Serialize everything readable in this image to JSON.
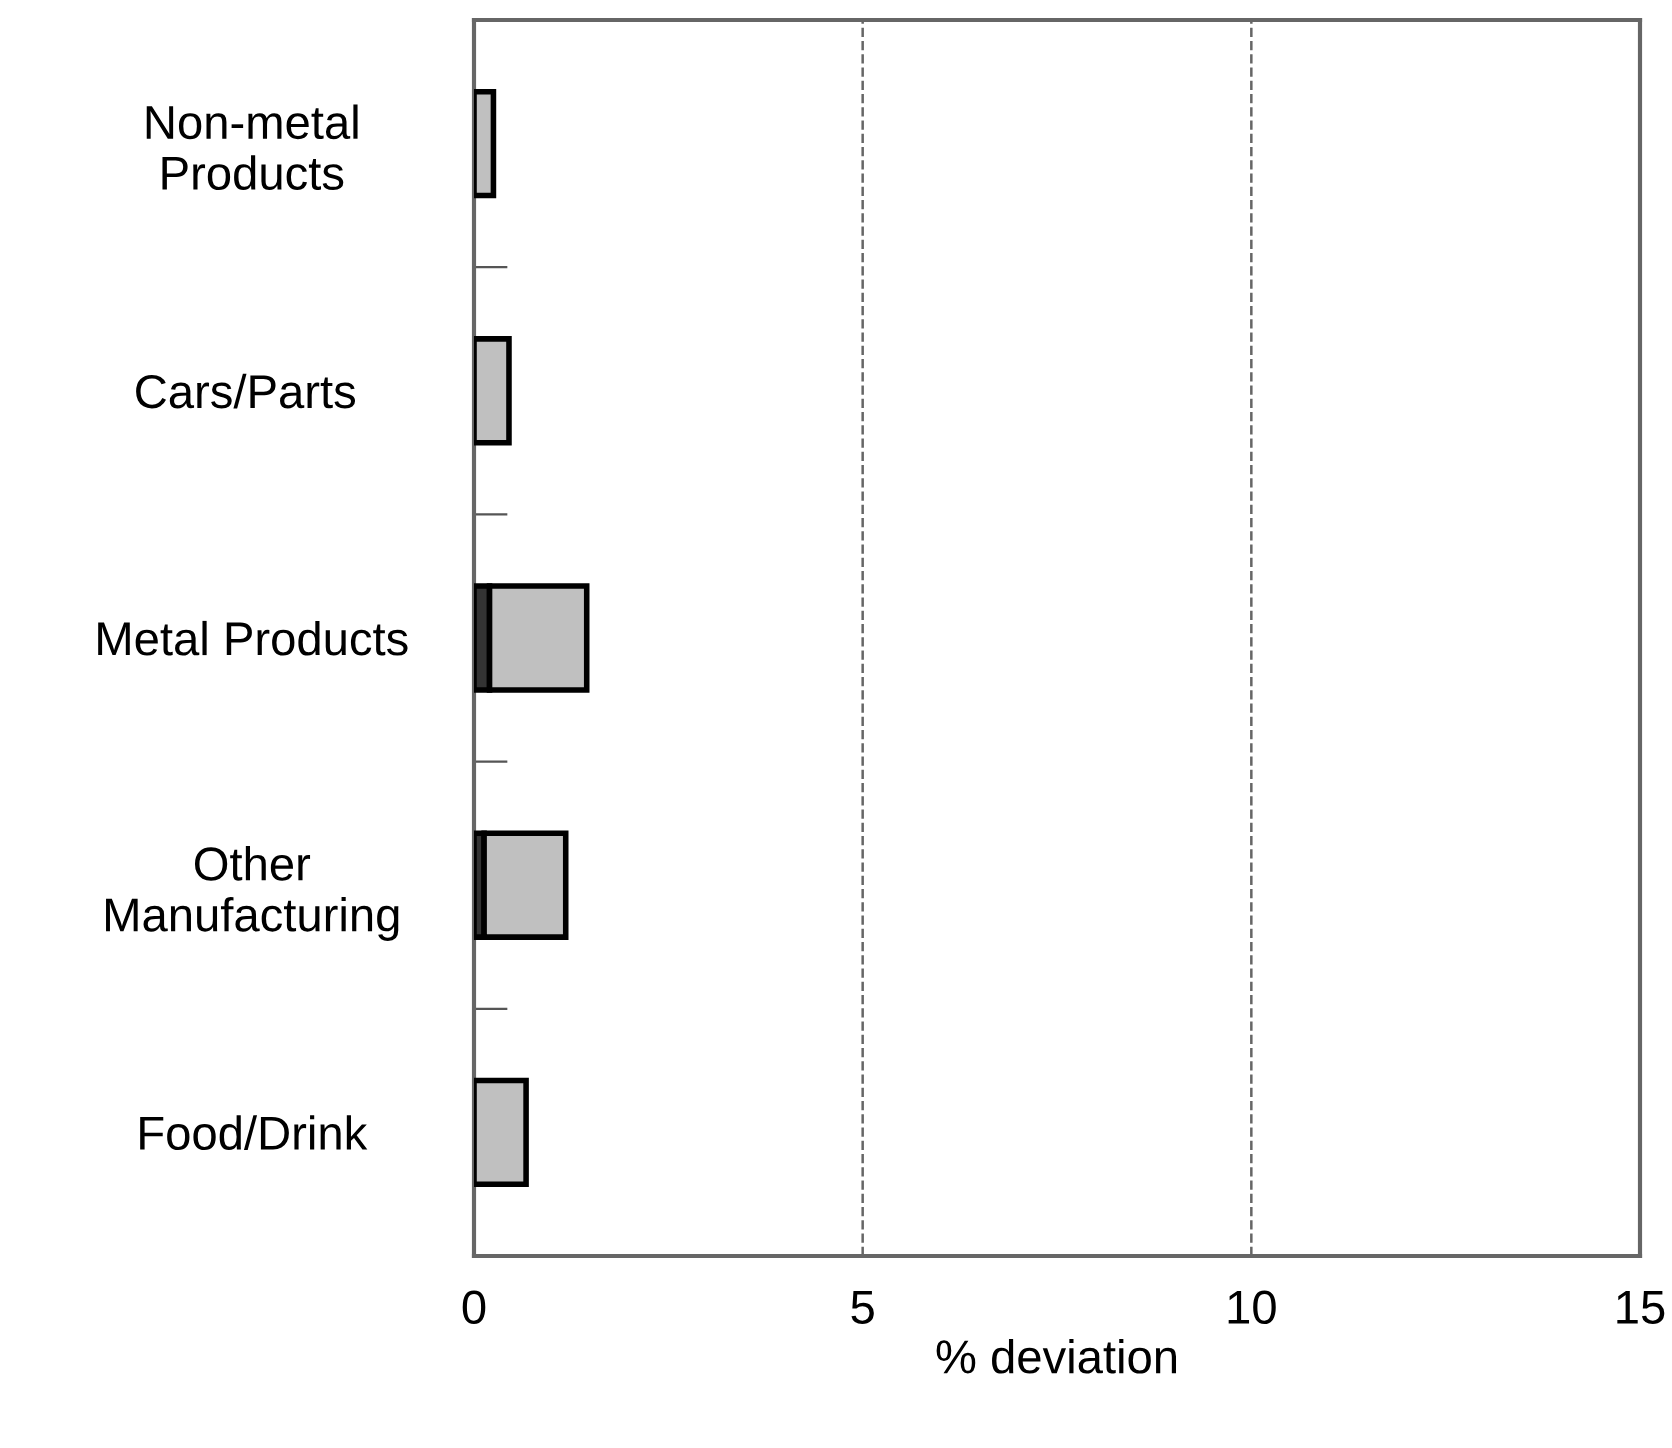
{
  "chart_data": {
    "type": "bar",
    "orientation": "horizontal",
    "stacked": true,
    "categories": [
      "Non-metal\nProducts",
      "Cars/Parts ",
      "Metal Products",
      "Other\nManufacturing",
      "Food/Drink"
    ],
    "series": [
      {
        "color": "#333333",
        "values": [
          0,
          0,
          0.2,
          0.13,
          0
        ]
      },
      {
        "color": "#c0c0c0",
        "values": [
          0.25,
          0.45,
          1.25,
          1.05,
          0.67
        ]
      }
    ],
    "xlabel": "% deviation",
    "xlim": [
      0,
      15
    ],
    "xticks": [
      0,
      5,
      10,
      15
    ],
    "grid": "x",
    "legend": false
  }
}
